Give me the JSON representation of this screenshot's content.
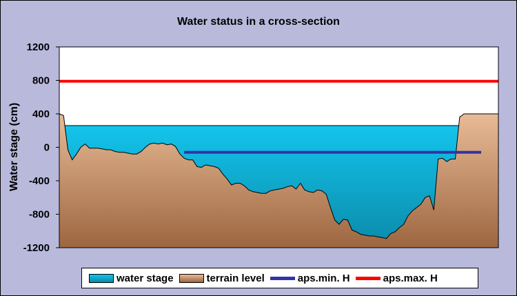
{
  "chart_data": {
    "type": "area",
    "title": "Water status in a cross-section",
    "xlabel": "",
    "ylabel": "Water stage (cm)",
    "ylim": [
      -1200,
      1200
    ],
    "yticks": [
      1200,
      800,
      400,
      0,
      -400,
      -800,
      -1200
    ],
    "x": [
      0,
      1,
      2,
      3,
      4,
      5,
      6,
      7,
      8,
      9,
      10,
      11,
      12,
      13,
      14,
      15,
      16,
      17,
      18,
      19,
      20,
      21,
      22,
      23,
      24,
      25,
      26,
      27,
      28,
      29,
      30,
      31,
      32,
      33,
      34,
      35,
      36,
      37,
      38,
      39,
      40,
      41,
      42,
      43,
      44,
      45,
      46,
      47,
      48,
      49,
      50,
      51,
      52,
      53,
      54,
      55,
      56,
      57,
      58,
      59,
      60,
      61,
      62,
      63,
      64,
      65,
      66,
      67,
      68,
      69,
      70,
      71,
      72,
      73,
      74,
      75,
      76,
      77,
      78,
      79,
      80,
      81,
      82,
      83,
      84,
      85,
      86,
      87,
      88,
      89,
      90,
      91,
      92,
      93,
      94,
      95,
      96,
      97,
      98,
      99,
      100,
      101,
      102
    ],
    "series": [
      {
        "name": "water stage",
        "kind": "area",
        "color": "#27b7d9",
        "values": [
          260,
          260,
          260,
          260,
          260,
          260,
          260,
          260,
          260,
          260,
          260,
          260,
          260,
          260,
          260,
          260,
          260,
          260,
          260,
          260,
          260,
          260,
          260,
          260,
          260,
          260,
          260,
          260,
          260,
          260,
          260,
          260,
          260,
          260,
          260,
          260,
          260,
          260,
          260,
          260,
          260,
          260,
          260,
          260,
          260,
          260,
          260,
          260,
          260,
          260,
          260,
          260,
          260,
          260,
          260,
          260,
          260,
          260,
          260,
          260,
          260,
          260,
          260,
          260,
          260,
          260,
          260,
          260,
          260,
          260,
          260,
          260,
          260,
          260,
          260,
          260,
          260,
          260,
          260,
          260,
          260,
          260,
          260,
          260,
          260,
          260,
          260,
          260,
          260,
          260,
          260,
          260,
          260,
          260,
          260,
          260,
          260,
          260,
          260,
          260,
          260,
          260,
          260
        ]
      },
      {
        "name": "terrain level",
        "kind": "area",
        "color": "#d9a880",
        "values": [
          400,
          380,
          -30,
          -150,
          -80,
          0,
          40,
          -10,
          -10,
          -10,
          -20,
          -30,
          -30,
          -50,
          -60,
          -60,
          -70,
          -80,
          -80,
          -50,
          0,
          40,
          50,
          40,
          50,
          30,
          40,
          10,
          -80,
          -130,
          -150,
          -150,
          -230,
          -240,
          -210,
          -220,
          -230,
          -250,
          -320,
          -380,
          -450,
          -430,
          -430,
          -460,
          -510,
          -530,
          -540,
          -550,
          -550,
          -520,
          -510,
          -500,
          -490,
          -470,
          -460,
          -500,
          -430,
          -510,
          -530,
          -540,
          -510,
          -520,
          -560,
          -720,
          -870,
          -920,
          -860,
          -870,
          -990,
          -1010,
          -1040,
          -1050,
          -1060,
          -1060,
          -1070,
          -1080,
          -1090,
          -1030,
          -1010,
          -960,
          -920,
          -820,
          -760,
          -720,
          -680,
          -600,
          -580,
          -750,
          -140,
          -130,
          -170,
          -140,
          -140,
          360,
          400,
          400,
          400,
          400,
          400,
          400,
          400,
          400,
          400
        ]
      },
      {
        "name": "aps.min. H",
        "kind": "line",
        "color": "#3333a8",
        "value": -60,
        "x_range": [
          29,
          98
        ]
      },
      {
        "name": "aps.max. H",
        "kind": "line",
        "color": "#ff0000",
        "value": 790,
        "x_range": [
          0,
          102
        ]
      }
    ],
    "legend_position": "bottom",
    "grid": false,
    "colors": {
      "background": "#b9b9dc",
      "plot_background": "#ffffff",
      "water_top": "#14c4ec",
      "water_bottom": "#0a8aa9",
      "terrain_top": "#e8bb96",
      "terrain_bottom": "#9c6640"
    }
  }
}
